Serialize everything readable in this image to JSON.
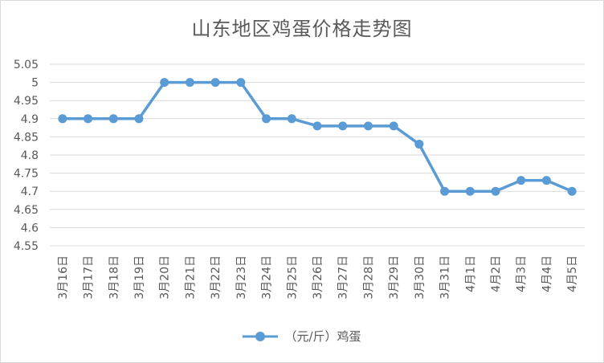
{
  "chart_data": {
    "type": "line",
    "title": "山东地区鸡蛋价格走势图",
    "categories": [
      "3月16日",
      "3月17日",
      "3月18日",
      "3月19日",
      "3月20日",
      "3月21日",
      "3月22日",
      "3月23日",
      "3月24日",
      "3月25日",
      "3月26日",
      "3月27日",
      "3月28日",
      "3月29日",
      "3月30日",
      "3月31日",
      "4月1日",
      "4月2日",
      "4月3日",
      "4月4日",
      "4月5日"
    ],
    "series": [
      {
        "name": "（元/斤）鸡蛋",
        "color": "#5b9bd5",
        "values": [
          4.9,
          4.9,
          4.9,
          4.9,
          5.0,
          5.0,
          5.0,
          5.0,
          4.9,
          4.9,
          4.88,
          4.88,
          4.88,
          4.88,
          4.83,
          4.7,
          4.7,
          4.7,
          4.73,
          4.73,
          4.7
        ]
      }
    ],
    "ylim": [
      4.55,
      5.05
    ],
    "yticks": [
      "4.55",
      "4.6",
      "4.65",
      "4.7",
      "4.75",
      "4.8",
      "4.85",
      "4.9",
      "4.95",
      "5",
      "5.05"
    ],
    "grid": true,
    "legend_position": "bottom"
  }
}
